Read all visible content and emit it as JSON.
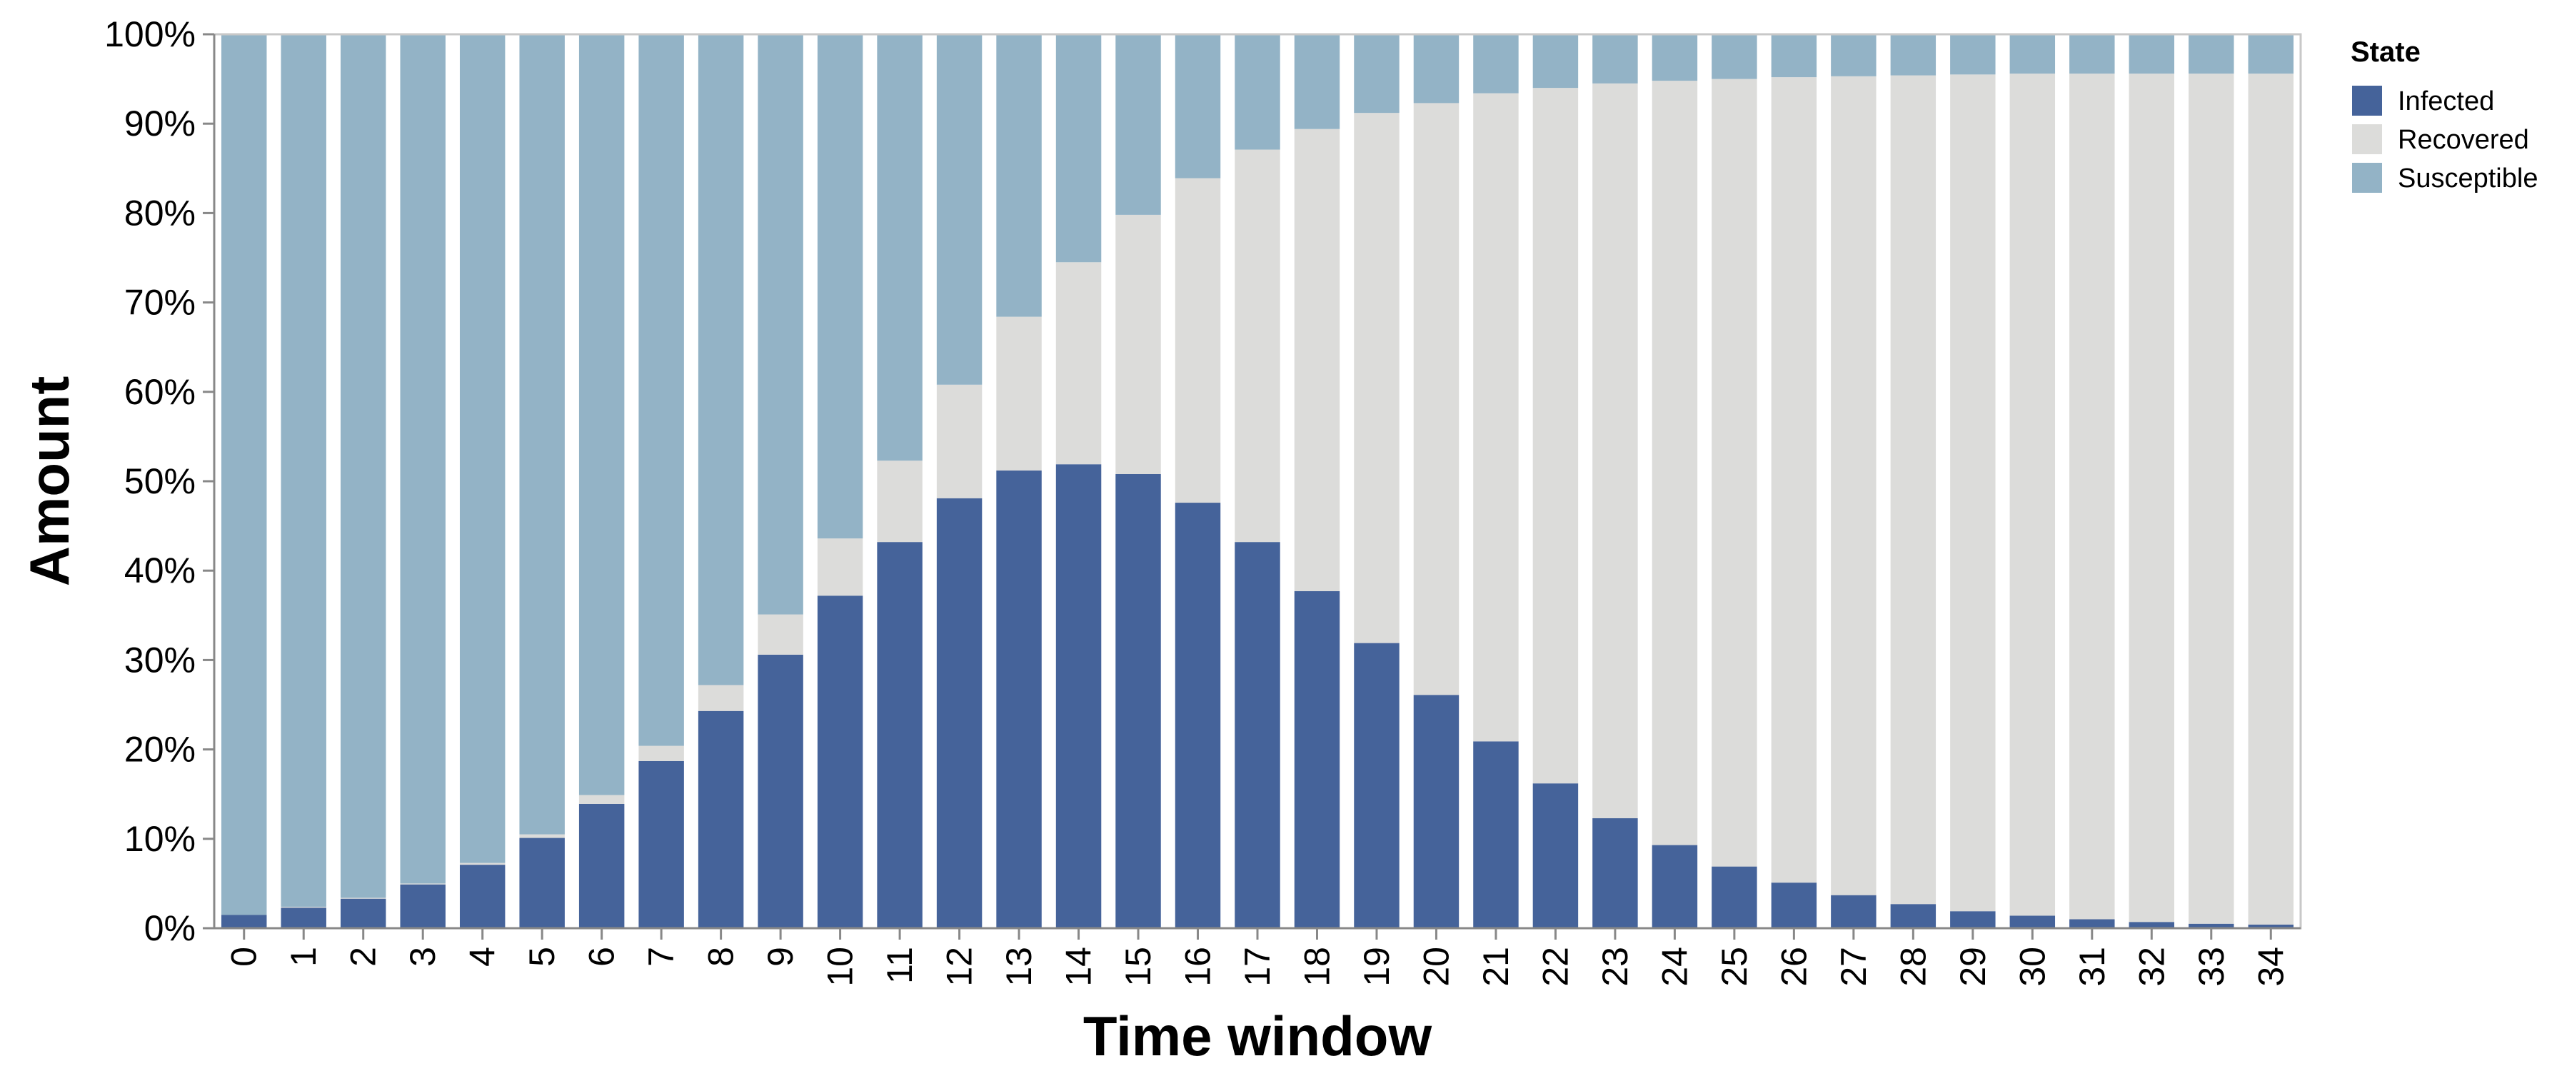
{
  "chart_data": {
    "type": "bar",
    "stacked": true,
    "normalized": true,
    "title": "",
    "xlabel": "Time window",
    "ylabel": "Amount",
    "ylim": [
      0,
      100
    ],
    "y_ticks": [
      "0%",
      "10%",
      "20%",
      "30%",
      "40%",
      "50%",
      "60%",
      "70%",
      "80%",
      "90%",
      "100%"
    ],
    "grid": false,
    "categories": [
      "0",
      "1",
      "2",
      "3",
      "4",
      "5",
      "6",
      "7",
      "8",
      "9",
      "10",
      "11",
      "12",
      "13",
      "14",
      "15",
      "16",
      "17",
      "18",
      "19",
      "20",
      "21",
      "22",
      "23",
      "24",
      "25",
      "26",
      "27",
      "28",
      "29",
      "30",
      "31",
      "32",
      "33",
      "34"
    ],
    "legend": {
      "title": "State",
      "position": "right"
    },
    "series": [
      {
        "name": "Infected",
        "color": "#45639a",
        "values": [
          1.5,
          2.3,
          3.3,
          4.9,
          7.1,
          10.1,
          13.9,
          18.7,
          24.3,
          30.6,
          37.2,
          43.2,
          48.1,
          51.2,
          51.9,
          50.8,
          47.6,
          43.2,
          37.7,
          31.9,
          26.1,
          20.9,
          16.2,
          12.3,
          9.3,
          6.9,
          5.1,
          3.7,
          2.7,
          1.9,
          1.4,
          1.0,
          0.7,
          0.5,
          0.4
        ]
      },
      {
        "name": "Recovered",
        "color": "#dcdcda",
        "values": [
          0.0,
          0.1,
          0.1,
          0.1,
          0.2,
          0.4,
          1.0,
          1.7,
          2.9,
          4.5,
          6.4,
          9.1,
          12.7,
          17.2,
          22.6,
          29.0,
          36.3,
          43.9,
          51.7,
          59.3,
          66.2,
          72.5,
          77.8,
          82.2,
          85.5,
          88.1,
          90.1,
          91.6,
          92.7,
          93.6,
          94.2,
          94.6,
          94.9,
          95.1,
          95.2
        ]
      },
      {
        "name": "Susceptible",
        "color": "#93b3c6",
        "values": [
          98.5,
          97.6,
          96.6,
          95.0,
          92.7,
          89.5,
          85.1,
          79.6,
          72.8,
          64.9,
          56.4,
          47.7,
          39.2,
          31.6,
          25.5,
          20.2,
          16.1,
          12.9,
          10.6,
          8.8,
          7.7,
          6.6,
          6.0,
          5.5,
          5.2,
          5.0,
          4.8,
          4.7,
          4.6,
          4.5,
          4.4,
          4.4,
          4.4,
          4.4,
          4.4
        ]
      }
    ]
  }
}
